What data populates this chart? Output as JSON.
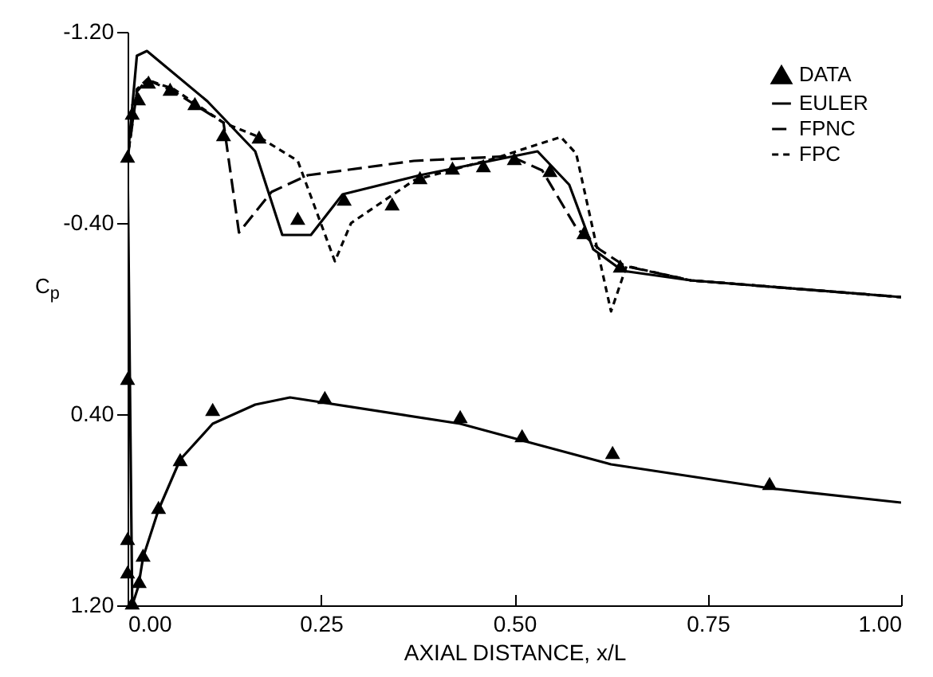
{
  "chart_data": {
    "type": "line",
    "xlabel": "AXIAL DISTANCE, x/L",
    "ylabel": "C$_{p}$",
    "xlim": [
      0,
      1
    ],
    "xticks": [
      {
        "value": 0,
        "label": "0.00"
      },
      {
        "value": 0.25,
        "label": "0.25"
      },
      {
        "value": 0.5,
        "label": "0.50"
      },
      {
        "value": 0.75,
        "label": "0.75"
      },
      {
        "value": 1,
        "label": "1.00"
      }
    ],
    "ylim": [
      1.2,
      -1.2
    ],
    "yticks": [
      {
        "value": -1.2,
        "label": "-1.20"
      },
      {
        "value": -0.4,
        "label": "-0.40"
      },
      {
        "value": 0.4,
        "label": "0.40"
      },
      {
        "value": 1.2,
        "label": "1.20"
      }
    ],
    "grid": false,
    "legend": "top right",
    "series": [
      {
        "name": "DATA",
        "type": "scatter",
        "marker": "triangle",
        "color": "#000000",
        "x": [
          0,
          0.006,
          0.014,
          0.027,
          0.055,
          0.087,
          0.124,
          0.17,
          0.22,
          0.28,
          0.342,
          0.378,
          0.42,
          0.46,
          0.5,
          0.546,
          0.59,
          0.637,
          0,
          0,
          0,
          0.006,
          0.015,
          0.02,
          0.04,
          0.068,
          0.11,
          0.255,
          0.43,
          0.51,
          0.627,
          0.83
        ],
        "values": [
          -0.68,
          -0.86,
          -0.92,
          -0.99,
          -0.96,
          -0.9,
          -0.77,
          -0.76,
          -0.42,
          -0.5,
          -0.48,
          -0.59,
          -0.63,
          -0.64,
          -0.67,
          -0.62,
          -0.36,
          -0.22,
          0.25,
          0.92,
          1.06,
          1.19,
          1.1,
          0.99,
          0.79,
          0.59,
          0.38,
          0.33,
          0.41,
          0.49,
          0.56,
          0.69
        ]
      },
      {
        "name": "EULER",
        "type": "line",
        "line_style": "solid",
        "color": "#000000",
        "x": [
          1,
          0.83,
          0.625,
          0.51,
          0.43,
          0.25,
          0.21,
          0.165,
          0.11,
          0.068,
          0.04,
          0.02,
          0.014,
          0.006,
          0,
          0.012,
          0.025,
          0.103,
          0.165,
          0.2,
          0.237,
          0.278,
          0.378,
          0.53,
          0.571,
          0.602,
          0.64,
          0.728,
          1
        ],
        "values": [
          0.77,
          0.71,
          0.61,
          0.51,
          0.44,
          0.35,
          0.33,
          0.36,
          0.44,
          0.59,
          0.8,
          1.0,
          1.12,
          1.2,
          -0.67,
          -1.1,
          -1.12,
          -0.91,
          -0.7,
          -0.35,
          -0.35,
          -0.52,
          -0.6,
          -0.7,
          -0.56,
          -0.29,
          -0.2,
          -0.16,
          -0.09
        ]
      },
      {
        "name": "FPNC",
        "type": "line",
        "line_style": "dashed",
        "color": "#000000",
        "x": [
          0,
          0.012,
          0.025,
          0.06,
          0.124,
          0.144,
          0.186,
          0.233,
          0.37,
          0.495,
          0.536,
          0.58,
          0.61,
          0.643,
          0.728,
          1
        ],
        "values": [
          -0.67,
          -0.95,
          -1.0,
          -0.95,
          -0.82,
          -0.36,
          -0.53,
          -0.6,
          -0.66,
          -0.68,
          -0.62,
          -0.38,
          -0.29,
          -0.22,
          -0.16,
          -0.09
        ]
      },
      {
        "name": "FPC",
        "type": "line",
        "line_style": "dotted",
        "color": "#000000",
        "x": [
          0,
          0.012,
          0.025,
          0.06,
          0.124,
          0.17,
          0.22,
          0.268,
          0.289,
          0.371,
          0.474,
          0.56,
          0.58,
          0.625,
          0.645,
          0.728,
          1
        ],
        "values": [
          -0.67,
          -0.96,
          -1.0,
          -0.96,
          -0.82,
          -0.76,
          -0.66,
          -0.24,
          -0.4,
          -0.58,
          -0.67,
          -0.76,
          -0.69,
          -0.03,
          -0.22,
          -0.16,
          -0.09
        ]
      }
    ]
  }
}
